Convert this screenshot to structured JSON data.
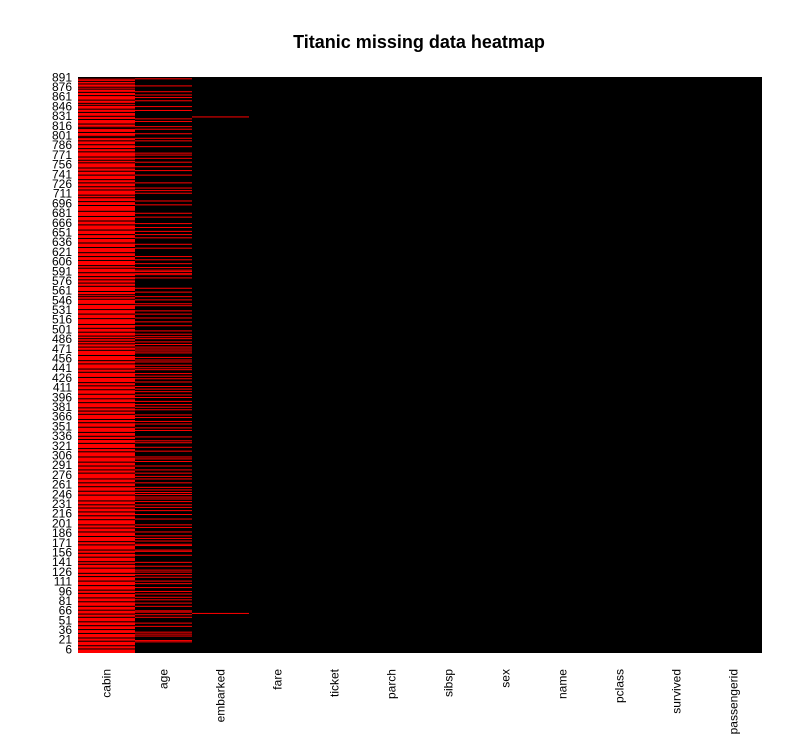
{
  "colors": {
    "missing": "#ff0000",
    "present": "#000000",
    "background": "#ffffff",
    "text": "#000000"
  },
  "chart_data": {
    "type": "heatmap",
    "title": "Titanic missing data heatmap",
    "xlabel": "",
    "ylabel": "",
    "columns": [
      "cabin",
      "age",
      "embarked",
      "fare",
      "ticket",
      "parch",
      "sibsp",
      "sex",
      "name",
      "pclass",
      "survived",
      "passengerid"
    ],
    "row_ticks": [
      891,
      876,
      861,
      846,
      831,
      816,
      801,
      786,
      771,
      756,
      741,
      726,
      711,
      696,
      681,
      666,
      651,
      636,
      621,
      606,
      591,
      576,
      561,
      546,
      531,
      516,
      501,
      486,
      471,
      456,
      441,
      426,
      411,
      396,
      381,
      366,
      351,
      336,
      321,
      306,
      291,
      276,
      261,
      246,
      231,
      216,
      201,
      186,
      171,
      156,
      141,
      126,
      111,
      96,
      81,
      66,
      51,
      36,
      21,
      6
    ],
    "y_range": [
      1,
      891
    ],
    "legend": "none",
    "cabin_present_rows": [
      891,
      889,
      885,
      881,
      876,
      873,
      868,
      863,
      856,
      851,
      848,
      842,
      837,
      831,
      826,
      819,
      814,
      812,
      806,
      800,
      798,
      793,
      787,
      781,
      776,
      768,
      763,
      759,
      751,
      746,
      740,
      733,
      728,
      722,
      717,
      709,
      705,
      699,
      693,
      684,
      676,
      669,
      663,
      655,
      648,
      642,
      635,
      628,
      620,
      614,
      608,
      600,
      596,
      589,
      583,
      578,
      573,
      568,
      560,
      555,
      552,
      548,
      540,
      532,
      525,
      518,
      509,
      503,
      497,
      491,
      487,
      483,
      479,
      474,
      469,
      461,
      453,
      448,
      440,
      435,
      427,
      419,
      414,
      408,
      401,
      394,
      388,
      380,
      375,
      370,
      362,
      357,
      350,
      342,
      336,
      331,
      325,
      317,
      312,
      304,
      296,
      290,
      284,
      279,
      270,
      264,
      258,
      251,
      245,
      236,
      230,
      225,
      219,
      213,
      207,
      199,
      194,
      188,
      181,
      173,
      168,
      160,
      155,
      149,
      142,
      138,
      132,
      124,
      119,
      112,
      105,
      98,
      93,
      86,
      80,
      73,
      67,
      61,
      56,
      49,
      43,
      37,
      31,
      24,
      19,
      12,
      7
    ],
    "age_missing_rows": [
      889,
      878,
      869,
      864,
      860,
      855,
      846,
      840,
      827,
      823,
      815,
      811,
      804,
      797,
      793,
      784,
      774,
      771,
      766,
      760,
      753,
      747,
      740,
      728,
      720,
      716,
      712,
      700,
      694,
      681,
      675,
      665,
      659,
      653,
      648,
      643,
      633,
      627,
      614,
      609,
      603,
      597,
      593,
      591,
      588,
      586,
      581,
      565,
      559,
      552,
      547,
      541,
      538,
      530,
      525,
      519,
      513,
      507,
      499,
      494,
      490,
      487,
      482,
      478,
      474,
      471,
      468,
      465,
      458,
      454,
      451,
      446,
      442,
      439,
      433,
      429,
      425,
      420,
      413,
      409,
      405,
      400,
      396,
      390,
      385,
      381,
      377,
      369,
      365,
      359,
      355,
      349,
      345,
      335,
      329,
      326,
      319,
      313,
      304,
      301,
      297,
      290,
      284,
      279,
      274,
      270,
      264,
      257,
      253,
      249,
      246,
      242,
      239,
      235,
      230,
      226,
      221,
      215,
      208,
      199,
      195,
      188,
      182,
      178,
      174,
      169,
      167,
      160,
      158,
      152,
      141,
      135,
      129,
      126,
      122,
      118,
      112,
      108,
      102,
      96,
      92,
      87,
      83,
      78,
      73,
      66,
      64,
      60,
      56,
      47,
      42,
      33,
      30,
      27,
      20,
      18
    ],
    "embarked_missing_rows": [
      830,
      62
    ]
  }
}
